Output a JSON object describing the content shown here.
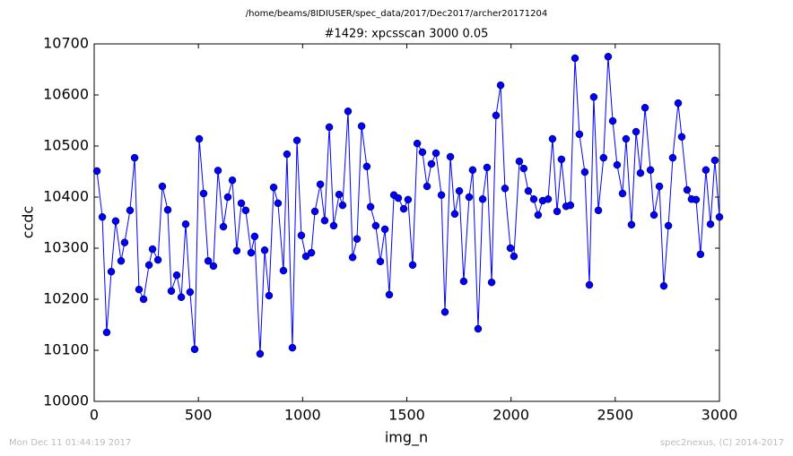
{
  "chart_data": {
    "type": "line",
    "suptitle": "/home/beams/8IDIUSER/spec_data/2017/Dec2017/archer20171204",
    "title": "#1429: xpcsscan 3000 0.05",
    "xlabel": "img_n",
    "ylabel": "ccdc",
    "footer_left": "Mon Dec 11 01:44:19 2017",
    "footer_right": "spec2nexus, (C) 2014-2017",
    "color": "#0000ff",
    "xlim": [
      0,
      3000
    ],
    "xticks": [
      0,
      500,
      1000,
      1500,
      2000,
      2500,
      3000
    ],
    "ylim": [
      10000,
      10700
    ],
    "yticks": [
      10000,
      10100,
      10200,
      10300,
      10400,
      10500,
      10600,
      10700
    ],
    "x": [
      13,
      39,
      60,
      82,
      103,
      129,
      146,
      172,
      194,
      215,
      237,
      263,
      280,
      306,
      327,
      353,
      370,
      396,
      418,
      439,
      460,
      482,
      504,
      525,
      547,
      572,
      594,
      620,
      641,
      663,
      684,
      706,
      727,
      753,
      770,
      796,
      818,
      839,
      861,
      882,
      908,
      925,
      951,
      973,
      994,
      1016,
      1042,
      1059,
      1085,
      1106,
      1128,
      1149,
      1175,
      1192,
      1218,
      1240,
      1261,
      1283,
      1308,
      1326,
      1351,
      1373,
      1395,
      1416,
      1438,
      1459,
      1485,
      1506,
      1528,
      1550,
      1575,
      1597,
      1618,
      1640,
      1666,
      1683,
      1709,
      1730,
      1752,
      1773,
      1799,
      1816,
      1842,
      1864,
      1885,
      1907,
      1928,
      1950,
      1971,
      1997,
      2014,
      2040,
      2061,
      2083,
      2109,
      2130,
      2152,
      2178,
      2199,
      2221,
      2242,
      2264,
      2285,
      2307,
      2328,
      2354,
      2376,
      2397,
      2419,
      2444,
      2466,
      2488,
      2509,
      2535,
      2552,
      2578,
      2600,
      2621,
      2643,
      2669,
      2686,
      2712,
      2733,
      2755,
      2776,
      2802,
      2819,
      2845,
      2866,
      2888,
      2909,
      2935,
      2957,
      2978,
      3000
    ],
    "values": [
      10451,
      10361,
      10135,
      10254,
      10353,
      10275,
      10311,
      10374,
      10477,
      10219,
      10200,
      10267,
      10298,
      10277,
      10421,
      10375,
      10216,
      10247,
      10204,
      10347,
      10214,
      10102,
      10514,
      10407,
      10275,
      10265,
      10452,
      10342,
      10400,
      10433,
      10295,
      10388,
      10374,
      10291,
      10323,
      10093,
      10296,
      10207,
      10419,
      10388,
      10256,
      10484,
      10105,
      10511,
      10325,
      10284,
      10291,
      10372,
      10425,
      10354,
      10537,
      10344,
      10405,
      10384,
      10568,
      10282,
      10318,
      10539,
      10460,
      10381,
      10344,
      10274,
      10337,
      10209,
      10404,
      10398,
      10377,
      10395,
      10267,
      10505,
      10488,
      10421,
      10465,
      10486,
      10404,
      10175,
      10479,
      10367,
      10412,
      10235,
      10400,
      10453,
      10142,
      10396,
      10458,
      10233,
      10560,
      10619,
      10417,
      10300,
      10284,
      10470,
      10456,
      10412,
      10396,
      10365,
      10393,
      10396,
      10514,
      10372,
      10474,
      10382,
      10384,
      10672,
      10523,
      10449,
      10228,
      10596,
      10374,
      10477,
      10675,
      10549,
      10463,
      10407,
      10514,
      10346,
      10528,
      10447,
      10575,
      10453,
      10365,
      10421,
      10226,
      10344,
      10477,
      10584,
      10518,
      10414,
      10396,
      10395,
      10288,
      10453,
      10347,
      10472,
      10361
    ]
  }
}
